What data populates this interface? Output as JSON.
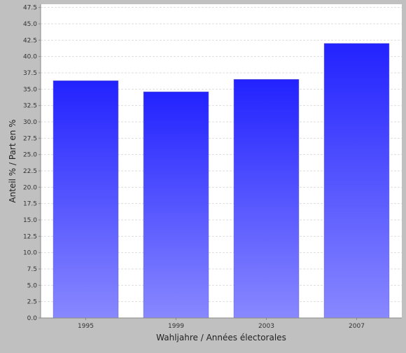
{
  "chart_data": {
    "type": "bar",
    "title": "",
    "xlabel": "Wahljahre / Années électorales",
    "ylabel": "Anteil % / Part en %",
    "categories": [
      "1995",
      "1999",
      "2003",
      "2007"
    ],
    "values": [
      36.3,
      34.6,
      36.5,
      42.0
    ],
    "ylim": [
      0,
      48
    ],
    "yticks": [
      0.0,
      2.5,
      5.0,
      7.5,
      10.0,
      12.5,
      15.0,
      17.5,
      20.0,
      22.5,
      25.0,
      27.5,
      30.0,
      32.5,
      35.0,
      37.5,
      40.0,
      42.5,
      45.0,
      47.5
    ],
    "grid": true,
    "legend": "none"
  },
  "colors": {
    "bar_top": "#2222ff",
    "bar_bottom": "#8888ff",
    "plot_background": "#ffffff",
    "page_background": "#c0c0c0",
    "gridline": "#dddddd"
  }
}
